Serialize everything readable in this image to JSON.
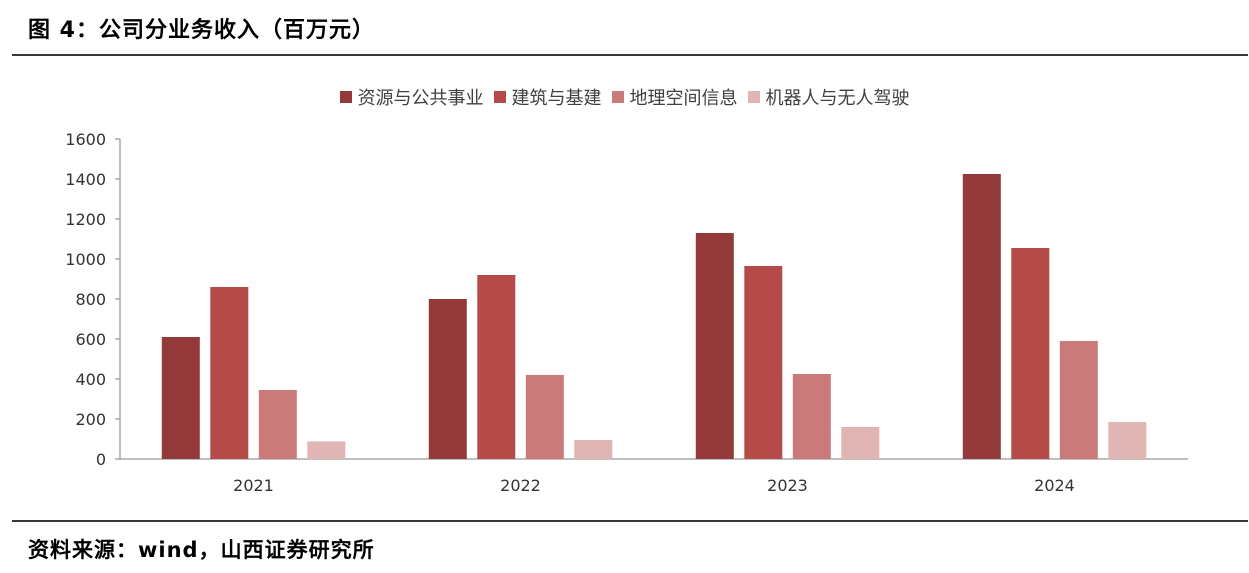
{
  "figure": {
    "title": "图 4：公司分业务收入（百万元）",
    "source": "资料来源：wind，山西证券研究所"
  },
  "chart_data": {
    "type": "bar",
    "title": "",
    "xlabel": "",
    "ylabel": "",
    "ylim": [
      0,
      1600
    ],
    "yticks": [
      0,
      200,
      400,
      600,
      800,
      1000,
      1200,
      1400,
      1600
    ],
    "categories": [
      "2021",
      "2022",
      "2023",
      "2024"
    ],
    "legend_position": "top",
    "grid": false,
    "series": [
      {
        "name": "资源与公共事业",
        "color": "#943a3a",
        "values": [
          610,
          800,
          1130,
          1425
        ]
      },
      {
        "name": "建筑与基建",
        "color": "#b54b48",
        "values": [
          860,
          920,
          965,
          1055
        ]
      },
      {
        "name": "地理空间信息",
        "color": "#c97a79",
        "values": [
          345,
          420,
          425,
          590
        ]
      },
      {
        "name": "机器人与无人驾驶",
        "color": "#e0b5b3",
        "values": [
          88,
          95,
          160,
          185
        ]
      }
    ]
  }
}
